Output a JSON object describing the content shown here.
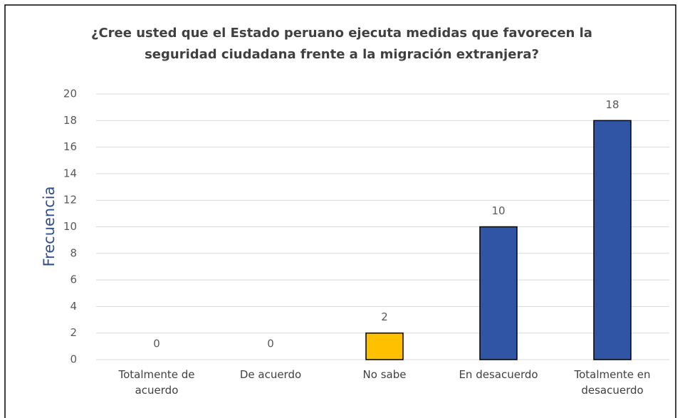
{
  "chart_data": {
    "type": "bar",
    "title": "¿Cree usted que el Estado peruano ejecuta medidas que favorecen la seguridad ciudadana frente a la migración extranjera?",
    "ylabel": "Frecuencia",
    "categories": [
      "Totalmente de acuerdo",
      "De acuerdo",
      "No sabe",
      "En desacuerdo",
      "Totalmente en desacuerdo"
    ],
    "values": [
      0,
      0,
      2,
      10,
      18
    ],
    "colors": [
      "#2f55a4",
      "#2f55a4",
      "#ffc000",
      "#2f55a4",
      "#2f55a4"
    ],
    "edgecolor": "#000000",
    "ylim": [
      0,
      20
    ],
    "yticks": [
      0,
      2,
      4,
      6,
      8,
      10,
      12,
      14,
      16,
      18,
      20
    ],
    "grid": true
  }
}
